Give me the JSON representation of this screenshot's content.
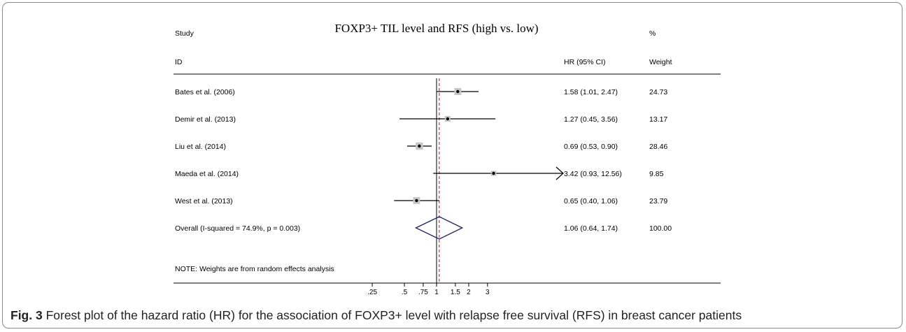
{
  "chart_data": {
    "type": "forest",
    "title": "FOXP3+ TIL level and RFS (high vs. low)",
    "header": {
      "study_line1": "Study",
      "study_line2": "ID",
      "hr_label": "HR (95% CI)",
      "weight_line1": "%",
      "weight_line2": "Weight"
    },
    "scale": "log",
    "xlim": [
      0.25,
      3.0
    ],
    "x_ticks": [
      ".25",
      ".5",
      ".75",
      "1",
      "1.5",
      "2",
      "3"
    ],
    "x_tick_values": [
      0.25,
      0.5,
      0.75,
      1,
      1.5,
      2,
      3
    ],
    "null_line": 1,
    "studies": [
      {
        "label": "Bates et al. (2006)",
        "hr": 1.58,
        "lo": 1.01,
        "hi": 2.47,
        "ci_text": "1.58 (1.01, 2.47)",
        "weight": "24.73",
        "weight_value": 24.73
      },
      {
        "label": "Demir et al. (2013)",
        "hr": 1.27,
        "lo": 0.45,
        "hi": 3.56,
        "ci_text": "1.27 (0.45, 3.56)",
        "weight": "13.17",
        "weight_value": 13.17
      },
      {
        "label": "Liu et al. (2014)",
        "hr": 0.69,
        "lo": 0.53,
        "hi": 0.9,
        "ci_text": "0.69 (0.53, 0.90)",
        "weight": "28.46",
        "weight_value": 28.46
      },
      {
        "label": "Maeda et al. (2014)",
        "hr": 3.42,
        "lo": 0.93,
        "hi": 12.56,
        "ci_text": "3.42 (0.93, 12.56)",
        "weight": "9.85",
        "weight_value": 9.85
      },
      {
        "label": "West et al. (2013)",
        "hr": 0.65,
        "lo": 0.4,
        "hi": 1.06,
        "ci_text": "0.65 (0.40, 1.06)",
        "weight": "23.79",
        "weight_value": 23.79
      }
    ],
    "overall": {
      "label": "Overall  (I-squared = 74.9%, p = 0.003)",
      "hr": 1.06,
      "lo": 0.64,
      "hi": 1.74,
      "ci_text": "1.06 (0.64, 1.74)",
      "weight": "100.00"
    },
    "note": "NOTE: Weights are from random effects analysis",
    "colors": {
      "line": "#000000",
      "box": "#c6c6c6",
      "diamond": "#1c2566",
      "overall_line": "#b0182a"
    }
  },
  "caption": {
    "label": "Fig. 3",
    "text": " Forest plot of the hazard ratio (HR) for the association of FOXP3+ level with relapse free survival (RFS) in breast cancer patients"
  }
}
